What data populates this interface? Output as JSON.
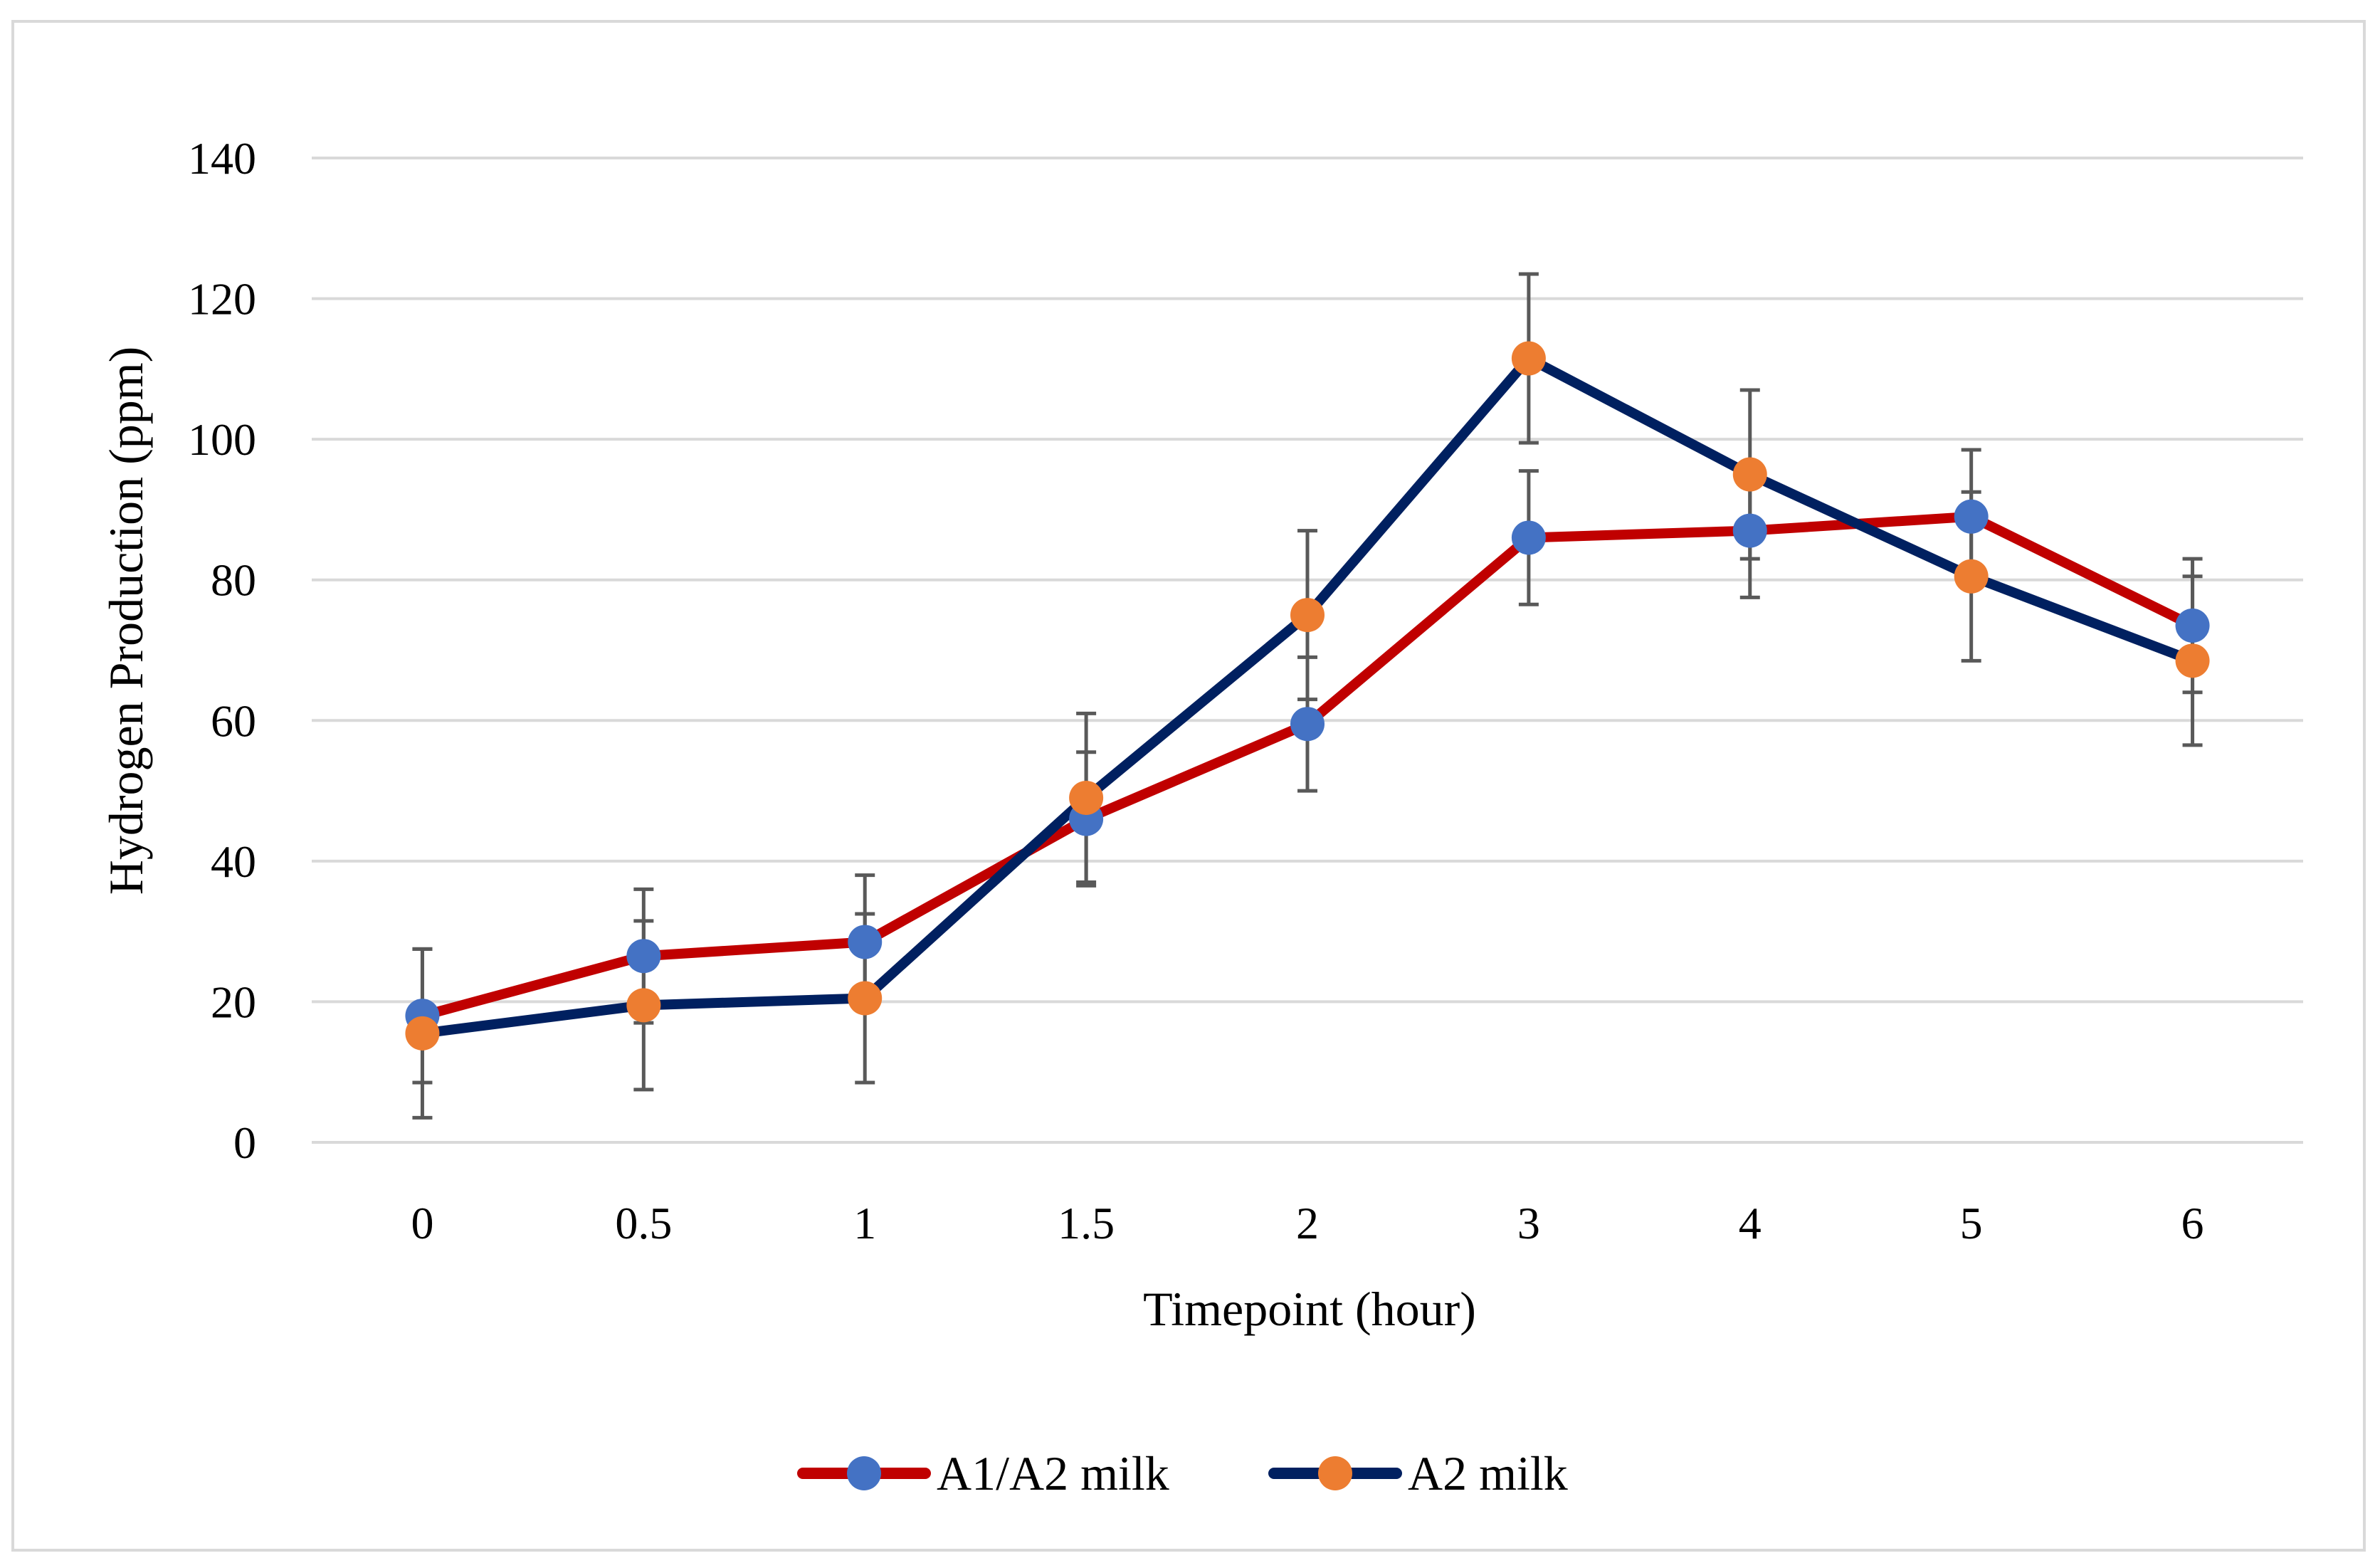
{
  "chart_data": {
    "type": "line",
    "title": "",
    "xlabel": "Timepoint (hour)",
    "ylabel": "Hydrogen Production (ppm)",
    "categories": [
      "0",
      "0.5",
      "1",
      "1.5",
      "2",
      "3",
      "4",
      "5",
      "6"
    ],
    "ylim": [
      0,
      140
    ],
    "yticks": [
      0,
      20,
      40,
      60,
      80,
      100,
      120,
      140
    ],
    "grid": true,
    "legend_position": "bottom",
    "series": [
      {
        "name": "A1/A2 milk",
        "line_color": "#c00000",
        "marker_color": "#4472c4",
        "values": [
          18,
          26.5,
          28.5,
          46,
          59.5,
          86,
          87,
          89,
          73.5
        ],
        "error": [
          9.5,
          9.5,
          9.5,
          9.5,
          9.5,
          9.5,
          9.5,
          9.5,
          9.5
        ]
      },
      {
        "name": "A2 milk",
        "line_color": "#002060",
        "marker_color": "#ed7d31",
        "values": [
          15.5,
          19.5,
          20.5,
          49,
          75,
          111.5,
          95,
          80.5,
          68.5
        ],
        "error": [
          12,
          12,
          12,
          12,
          12,
          12,
          12,
          12,
          12
        ]
      }
    ]
  }
}
